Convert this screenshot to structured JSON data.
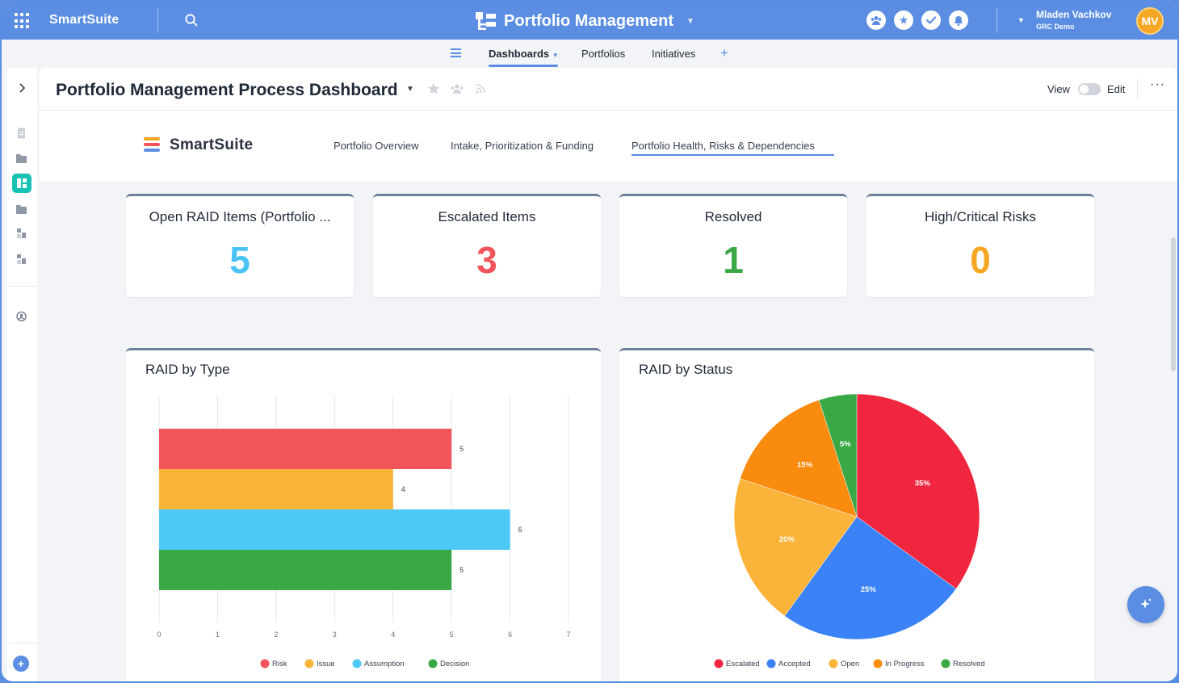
{
  "topbar": {
    "brand": "SmartSuite",
    "app_title": "Portfolio Management",
    "user_name": "Mladen Vachkov",
    "user_org": "GRC Demo",
    "avatar_initials": "MV"
  },
  "subnav": {
    "tabs": [
      {
        "label": "Dashboards"
      },
      {
        "label": "Portfolios"
      },
      {
        "label": "Initiatives"
      }
    ]
  },
  "dashboard": {
    "title": "Portfolio Management Process Dashboard",
    "view_label": "View",
    "edit_label": "Edit"
  },
  "banner": {
    "brand": "SmartSuite",
    "tabs": [
      {
        "label": "Portfolio Overview"
      },
      {
        "label": "Intake, Prioritization & Funding"
      },
      {
        "label": "Portfolio Health, Risks & Dependencies"
      }
    ]
  },
  "kpis": [
    {
      "title": "Open RAID Items (Portfolio ...",
      "value": "5",
      "color": "#4cc3f7"
    },
    {
      "title": "Escalated Items",
      "value": "3",
      "color": "#f2545b"
    },
    {
      "title": "Resolved",
      "value": "1",
      "color": "#3aa845"
    },
    {
      "title": "High/Critical Risks",
      "value": "0",
      "color": "#f5a623"
    }
  ],
  "chart_data": [
    {
      "type": "bar",
      "orientation": "horizontal",
      "title": "RAID by Type",
      "categories": [
        "Risk",
        "Issue",
        "Assumption",
        "Decision"
      ],
      "values": [
        5,
        4,
        6,
        5
      ],
      "colors": [
        "#f2545b",
        "#fbb33a",
        "#4dc9f6",
        "#3aa845"
      ],
      "xlim": [
        0,
        7
      ],
      "xticks": [
        "0",
        "1",
        "2",
        "3",
        "4",
        "5",
        "6",
        "7"
      ],
      "legend": "bottom"
    },
    {
      "type": "pie",
      "title": "RAID by Status",
      "labels": [
        "Escalated",
        "Accepted",
        "Open",
        "In Progress",
        "Resolved"
      ],
      "values": [
        35,
        25,
        20,
        15,
        5
      ],
      "value_labels": [
        "35%",
        "25%",
        "20%",
        "15%",
        "5%"
      ],
      "colors": [
        "#f0263f",
        "#3b82f6",
        "#fbb33a",
        "#f98b0f",
        "#3aa845"
      ],
      "legend": "bottom"
    }
  ]
}
